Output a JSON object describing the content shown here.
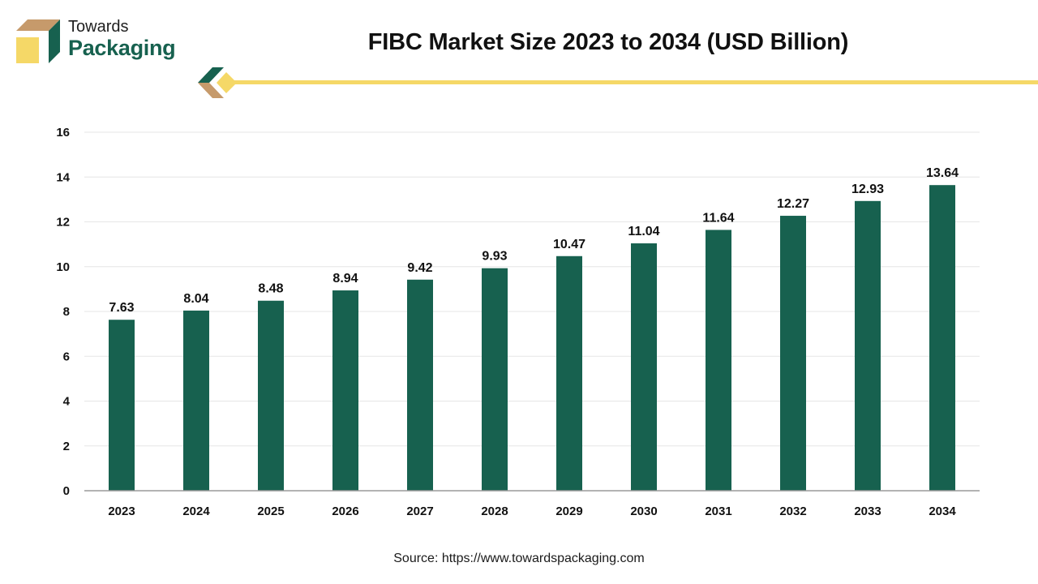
{
  "brand": {
    "line1": "Towards",
    "line2": "Packaging",
    "logo_icon": "box-icon"
  },
  "colors": {
    "bar": "#17614f",
    "accent_yellow": "#f5d867",
    "brand_green": "#17614f",
    "brand_tan": "#c69a6b",
    "gridline": "#e6e6e6",
    "axis": "#9a9a9a"
  },
  "source_note": "Source: https://www.towardspackaging.com",
  "chart_data": {
    "type": "bar",
    "title": "FIBC Market Size 2023 to 2034 (USD Billion)",
    "xlabel": "",
    "ylabel": "",
    "categories": [
      "2023",
      "2024",
      "2025",
      "2026",
      "2027",
      "2028",
      "2029",
      "2030",
      "2031",
      "2032",
      "2033",
      "2034"
    ],
    "values": [
      7.63,
      8.04,
      8.48,
      8.94,
      9.42,
      9.93,
      10.47,
      11.04,
      11.64,
      12.27,
      12.93,
      13.64
    ],
    "value_labels": [
      "7.63",
      "8.04",
      "8.48",
      "8.94",
      "9.42",
      "9.93",
      "10.47",
      "11.04",
      "11.64",
      "12.27",
      "12.93",
      "13.64"
    ],
    "ylim": [
      0,
      16
    ],
    "yticks": [
      "0",
      "2",
      "4",
      "6",
      "8",
      "10",
      "12",
      "14",
      "16"
    ],
    "grid": true,
    "legend": "none"
  }
}
